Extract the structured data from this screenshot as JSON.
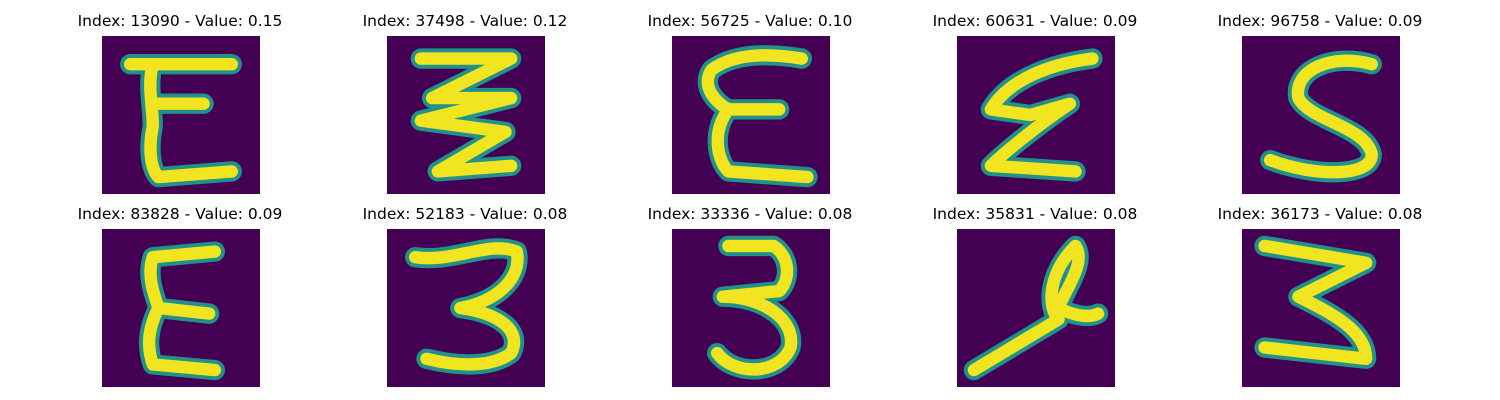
{
  "colors": {
    "background": "#440154",
    "glyph": "#f0e51f",
    "edge": "#21918c"
  },
  "rows": [
    [
      {
        "title": "Index: 13090 - Value: 0.15",
        "glyph": "E"
      },
      {
        "title": "Index: 37498 - Value: 0.12",
        "glyph": "triple-zigzag"
      },
      {
        "title": "Index: 56725 - Value: 0.10",
        "glyph": "E"
      },
      {
        "title": "Index: 60631 - Value: 0.09",
        "glyph": "slanted-E"
      },
      {
        "title": "Index: 96758 - Value: 0.09",
        "glyph": "S"
      }
    ],
    [
      {
        "title": "Index: 83828 - Value: 0.09",
        "glyph": "E"
      },
      {
        "title": "Index: 52183 - Value: 0.08",
        "glyph": "3"
      },
      {
        "title": "Index: 33336 - Value: 0.08",
        "glyph": "3"
      },
      {
        "title": "Index: 35831 - Value: 0.08",
        "glyph": "looped-stroke"
      },
      {
        "title": "Index: 36173 - Value: 0.08",
        "glyph": "3"
      }
    ]
  ]
}
